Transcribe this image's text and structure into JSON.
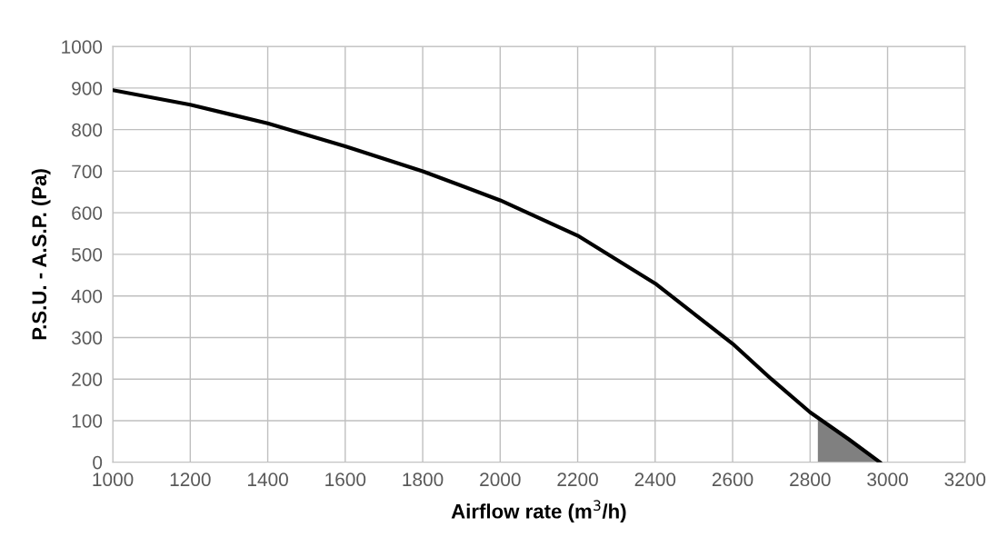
{
  "chart_data": {
    "type": "line",
    "xlabel": "Airflow rate (m$^{3}$/h)",
    "ylabel": "P.S.U. - A.S.P. (Pa)",
    "xlim": [
      1000,
      3200
    ],
    "xticks": [
      1000,
      1200,
      1400,
      1600,
      1800,
      2000,
      2200,
      2400,
      2600,
      2800,
      3000,
      3200
    ],
    "ylim": [
      0,
      1000
    ],
    "yticks": [
      0,
      100,
      200,
      300,
      400,
      500,
      600,
      700,
      800,
      900,
      1000
    ],
    "grid": true,
    "marker": "none",
    "line_style": "solid",
    "series": [
      {
        "color": "#000000",
        "x": [
          1000,
          1200,
          1400,
          1600,
          1800,
          2000,
          2200,
          2400,
          2600,
          2700,
          2800,
          2900,
          2980
        ],
        "values": [
          895,
          860,
          815,
          760,
          700,
          630,
          545,
          430,
          285,
          200,
          120,
          55,
          0
        ]
      },
      {
        "type": "area",
        "color": "#808080",
        "x": [
          2820,
          2900,
          2980
        ],
        "values": [
          105,
          55,
          0
        ]
      }
    ]
  }
}
